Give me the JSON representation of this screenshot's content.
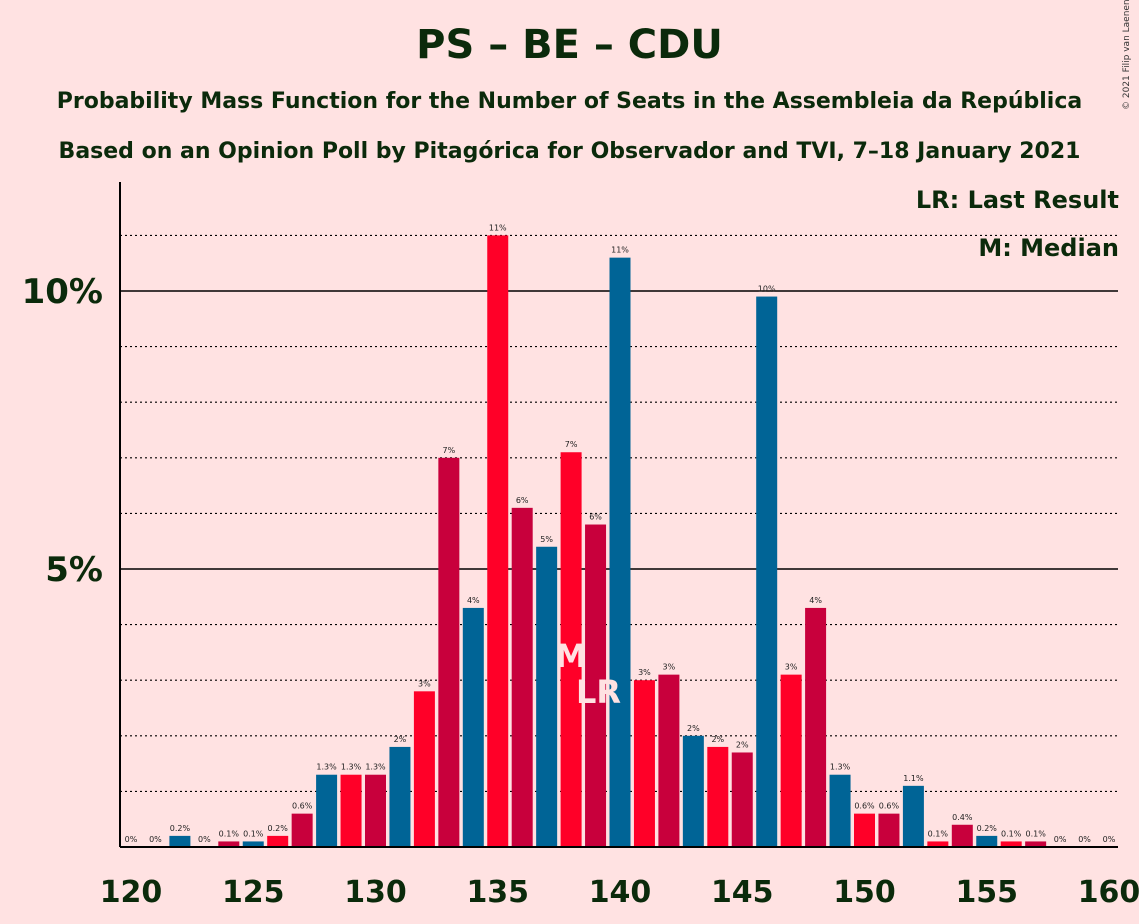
{
  "title": "PS – BE – CDU",
  "subtitle": "Probability Mass Function for the Number of Seats in the Assembleia da República",
  "subtitle2": "Based on an Opinion Poll by Pitagórica for Observador and TVI, 7–18 January 2021",
  "copyright": "© 2021 Filip van Laenen",
  "legend": {
    "lr": "LR: Last Result",
    "m": "M: Median"
  },
  "markers": {
    "median_label": "M",
    "median_seat": 138,
    "last_result_label": "LR",
    "last_result_seat": 139
  },
  "colors": {
    "blue": "#006496",
    "red": "#ff0028",
    "crimson": "#c8003c",
    "background": "#ffe2e2",
    "text": "#0b2a0b"
  },
  "chart_data": {
    "type": "bar",
    "x": [
      120,
      121,
      122,
      123,
      124,
      125,
      126,
      127,
      128,
      129,
      130,
      131,
      132,
      133,
      134,
      135,
      136,
      137,
      138,
      139,
      140,
      141,
      142,
      143,
      144,
      145,
      146,
      147,
      148,
      149,
      150,
      151,
      152,
      153,
      154,
      155,
      156,
      157,
      158,
      159,
      160
    ],
    "values": [
      0,
      0,
      0.2,
      0,
      0.1,
      0.1,
      0.2,
      0.6,
      1.3,
      1.3,
      1.3,
      1.8,
      2.8,
      7.0,
      4.3,
      11.0,
      6.1,
      5.4,
      7.1,
      5.8,
      10.6,
      3.0,
      3.1,
      2.0,
      1.8,
      1.7,
      9.9,
      3.1,
      4.3,
      1.3,
      0.6,
      0.6,
      1.1,
      0.1,
      0.4,
      0.2,
      0.1,
      0.1,
      0,
      0,
      0
    ],
    "labels": [
      "0%",
      "0%",
      "0.2%",
      "0%",
      "0.1%",
      "0.1%",
      "0.2%",
      "0.6%",
      "1.3%",
      "1.3%",
      "1.3%",
      "2%",
      "3%",
      "7%",
      "4%",
      "11%",
      "6%",
      "5%",
      "7%",
      "6%",
      "11%",
      "3%",
      "3%",
      "2%",
      "2%",
      "2%",
      "10%",
      "3%",
      "4%",
      "1.3%",
      "0.6%",
      "0.6%",
      "1.1%",
      "0.1%",
      "0.4%",
      "0.2%",
      "0.1%",
      "0.1%",
      "0%",
      "0%",
      "0%"
    ],
    "x_ticks": [
      120,
      125,
      130,
      135,
      140,
      145,
      150,
      155,
      160
    ],
    "y_ticks": [
      {
        "value": 5,
        "label": "5%"
      },
      {
        "value": 10,
        "label": "10%"
      }
    ],
    "ylim": [
      0,
      12
    ],
    "grid": "dotted every 1%, solid at 5% and 10%"
  }
}
